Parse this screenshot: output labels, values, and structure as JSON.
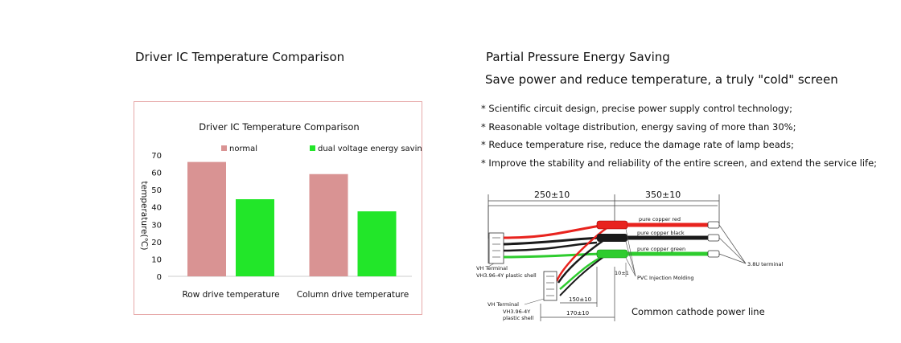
{
  "left_heading": "Driver IC Temperature Comparison",
  "chart_data": {
    "type": "bar",
    "title": "Driver IC Temperature Comparison",
    "ylabel": "temperature(℃)",
    "xlabel": "",
    "categories": [
      "Row drive temperature",
      "Column drive temperature"
    ],
    "series": [
      {
        "name": "normal",
        "values": [
          66,
          59
        ],
        "color": "#d99393"
      },
      {
        "name": "dual voltage energy saving",
        "values": [
          44.5,
          37.5
        ],
        "color": "#22e629"
      }
    ],
    "ylim": [
      0,
      70
    ],
    "yticks": [
      "0",
      "10",
      "20",
      "30",
      "40",
      "50",
      "60",
      "70"
    ],
    "grid": false,
    "legend": "top"
  },
  "right": {
    "title1": "Partial Pressure Energy Saving",
    "title2": "Save power and reduce temperature, a truly \"cold\" screen",
    "bullets": [
      "* Scientific circuit design, precise power supply control technology;",
      "* Reasonable voltage distribution, energy saving of more than 30%;",
      "* Reduce temperature rise, reduce the damage rate of lamp beads;",
      "* Improve the stability and reliability of the entire screen, and extend the service life;"
    ],
    "diagram": {
      "dim_top_left": "250±10",
      "dim_top_right": "350±10",
      "wire_red": "pure copper red",
      "wire_black": "pure copper black",
      "wire_green": "pure copper green",
      "terminal_38u": "3.8U terminal",
      "vh_terminal_1": "VH Terminal",
      "vh_shell_1": "VH3.96-4Y plastic shell",
      "dim_10": "10±1",
      "pvc": "PVC Injection Molding",
      "dim_150": "150±10",
      "vh_terminal_2": "VH Terminal",
      "vh_shell_2a": "VH3.96-4Y",
      "vh_shell_2b": "plastic shell",
      "dim_170": "170±10",
      "colors": {
        "red": "#e8231e",
        "black": "#1a1a1a",
        "green": "#2ecc2e"
      }
    },
    "caption": "Common cathode power line"
  }
}
